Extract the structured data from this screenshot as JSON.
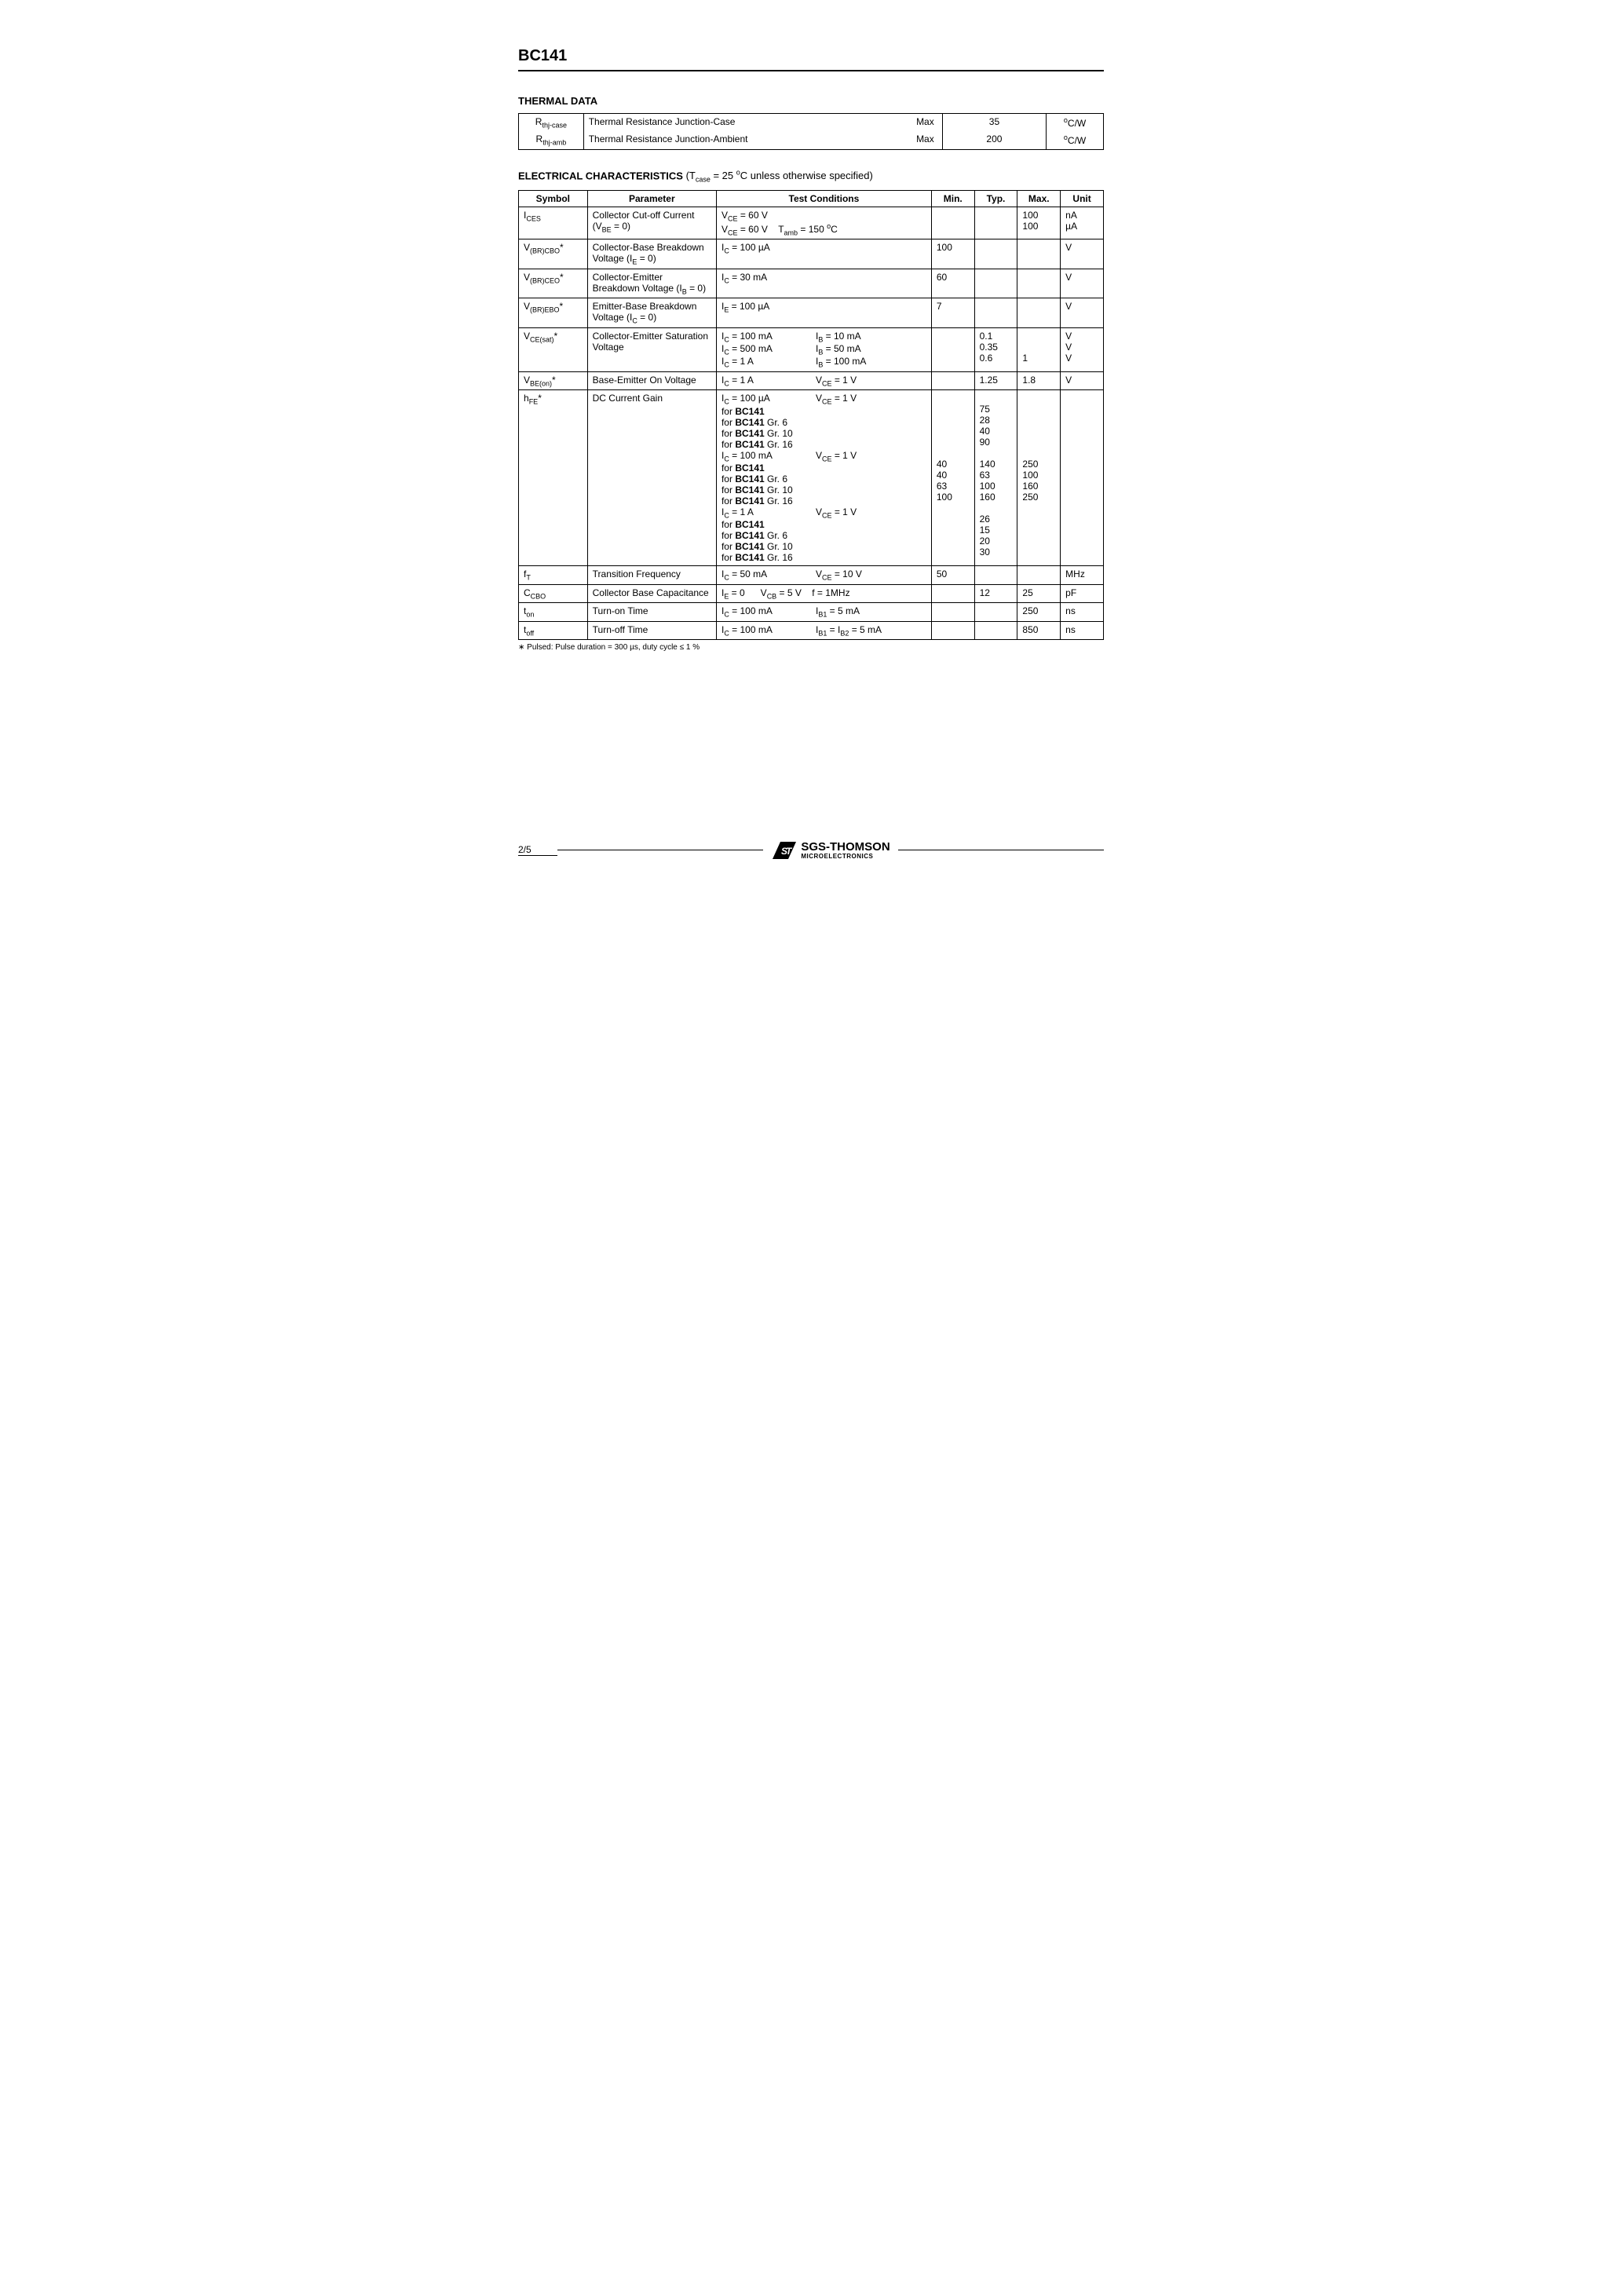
{
  "header": {
    "part_number": "BC141"
  },
  "thermal": {
    "title": "THERMAL DATA",
    "rows": [
      {
        "symbol_html": "R<span class='sub'>thj-case</span>",
        "desc": "Thermal Resistance Junction-Case",
        "maxlabel": "Max",
        "value": "35",
        "unit_html": "<span class='sup'>o</span>C/W"
      },
      {
        "symbol_html": "R<span class='sub'>thj-amb</span>",
        "desc": "Thermal Resistance Junction-Ambient",
        "maxlabel": "Max",
        "value": "200",
        "unit_html": "<span class='sup'>o</span>C/W"
      }
    ]
  },
  "electrical": {
    "title": "ELECTRICAL CHARACTERISTICS",
    "cond_note_html": "(T<span class='sub'>case</span> = 25 <span class='sup'>o</span>C unless otherwise specified)",
    "headers": {
      "symbol": "Symbol",
      "parameter": "Parameter",
      "conditions": "Test Conditions",
      "min": "Min.",
      "typ": "Typ.",
      "max": "Max.",
      "unit": "Unit"
    },
    "rows": [
      {
        "symbol_html": "I<span class='sub'>CES</span>",
        "param_html": "Collector Cut-off Current (V<span class='sub'>BE</span> = 0)",
        "cond_html": "V<span class='sub'>CE</span> = 60 V<br>V<span class='sub'>CE</span> = 60 V&nbsp;&nbsp;&nbsp;&nbsp;T<span class='sub'>amb</span> = 150 <span class='sup'>o</span>C",
        "min": "",
        "typ": "",
        "max_html": "100<br>100",
        "unit_html": "nA<br>µA"
      },
      {
        "symbol_html": "V<span class='sub'>(BR)CBO</span>*",
        "param_html": "Collector-Base Breakdown Voltage (I<span class='sub'>E</span> = 0)",
        "cond_html": "I<span class='sub'>C</span> = 100 µA",
        "min": "100",
        "typ": "",
        "max_html": "",
        "unit_html": "V"
      },
      {
        "symbol_html": "V<span class='sub'>(BR)CEO</span>*",
        "param_html": "Collector-Emitter Breakdown Voltage (I<span class='sub'>B</span> = 0)",
        "cond_html": "I<span class='sub'>C</span> = 30 mA",
        "min": "60",
        "typ": "",
        "max_html": "",
        "unit_html": "V"
      },
      {
        "symbol_html": "V<span class='sub'>(BR)EBO</span>*",
        "param_html": "Emitter-Base Breakdown Voltage (I<span class='sub'>C</span> = 0)",
        "cond_html": "I<span class='sub'>E</span> = 100 µA",
        "min": "7",
        "typ": "",
        "max_html": "",
        "unit_html": "V"
      },
      {
        "symbol_html": "V<span class='sub'>CE(sat)</span>*",
        "param_html": "Collector-Emitter Saturation Voltage",
        "cond_html": "<span class='cond-left'>I<span class='sub'>C</span> = 100 mA</span><span class='cond-right'>I<span class='sub'>B</span> = 10 mA</span><br><span class='cond-left'>I<span class='sub'>C</span> = 500 mA</span><span class='cond-right'>I<span class='sub'>B</span> = 50 mA</span><br><span class='cond-left'>I<span class='sub'>C</span> = 1 A</span><span class='cond-right'>I<span class='sub'>B</span> = 100 mA</span>",
        "min": "",
        "typ_html": "0.1<br>0.35<br>0.6",
        "max_html": "<br><br>1",
        "unit_html": "V<br>V<br>V"
      },
      {
        "symbol_html": "V<span class='sub'>BE(on)</span>*",
        "param_html": "Base-Emitter On Voltage",
        "cond_html": "<span class='cond-left'>I<span class='sub'>C</span> = 1 A</span><span class='cond-right'>V<span class='sub'>CE</span> = 1 V</span>",
        "min": "",
        "typ_html": "1.25",
        "max_html": "1.8",
        "unit_html": "V"
      },
      {
        "symbol_html": "h<span class='sub'>FE</span>*",
        "param_html": "DC Current Gain",
        "cond_html": "<span class='cond-left'>I<span class='sub'>C</span> = 100 µA</span><span class='cond-right'>V<span class='sub'>CE</span> = 1 V</span><br>for <b>BC141</b><br>for <b>BC141</b> Gr. 6<br>for <b>BC141</b> Gr. 10<br>for <b>BC141</b> Gr. 16<br><span class='cond-left'>I<span class='sub'>C</span> = 100 mA</span><span class='cond-right'>V<span class='sub'>CE</span> = 1 V</span><br>for <b>BC141</b><br>for <b>BC141</b> Gr. 6<br>for <b>BC141</b> Gr. 10<br>for <b>BC141</b> Gr. 16<br><span class='cond-left'>I<span class='sub'>C</span> = 1 A</span><span class='cond-right'>V<span class='sub'>CE</span> = 1 V</span><br>for <b>BC141</b><br>for <b>BC141</b> Gr. 6<br>for <b>BC141</b> Gr. 10<br>for <b>BC141</b> Gr. 16",
        "min_html": "<br><br><br><br><br><br>40<br>40<br>63<br>100<br><br><br><br><br>",
        "typ_html": "<br>75<br>28<br>40<br>90<br><br>140<br>63<br>100<br>160<br><br>26<br>15<br>20<br>30",
        "max_html": "<br><br><br><br><br><br>250<br>100<br>160<br>250<br><br><br><br><br>",
        "unit_html": ""
      },
      {
        "symbol_html": "f<span class='sub'>T</span>",
        "param_html": "Transition Frequency",
        "cond_html": "<span class='cond-left'>I<span class='sub'>C</span> = 50 mA</span><span class='cond-right'>V<span class='sub'>CE</span> = 10 V</span>",
        "min": "50",
        "typ_html": "",
        "max_html": "",
        "unit_html": "MHz"
      },
      {
        "symbol_html": "C<span class='sub'>CBO</span>",
        "param_html": "Collector Base Capacitance",
        "cond_html": "I<span class='sub'>E</span> = 0&nbsp;&nbsp;&nbsp;&nbsp;&nbsp;&nbsp;V<span class='sub'>CB</span> = 5 V&nbsp;&nbsp;&nbsp;&nbsp;f = 1MHz",
        "min": "",
        "typ_html": "12",
        "max_html": "25",
        "unit_html": "pF"
      },
      {
        "symbol_html": "t<span class='sub'>on</span>",
        "param_html": "Turn-on Time",
        "cond_html": "<span class='cond-left'>I<span class='sub'>C</span> = 100 mA</span><span class='cond-right'>I<span class='sub'>B1</span> = 5 mA</span>",
        "min": "",
        "typ_html": "",
        "max_html": "250",
        "unit_html": "ns"
      },
      {
        "symbol_html": "t<span class='sub'>off</span>",
        "param_html": "Turn-off Time",
        "cond_html": "<span class='cond-left'>I<span class='sub'>C</span> = 100 mA</span><span class='cond-right'>I<span class='sub'>B1</span> = I<span class='sub'>B2</span> = 5 mA</span>",
        "min": "",
        "typ_html": "",
        "max_html": "850",
        "unit_html": "ns"
      }
    ],
    "footnote": "∗ Pulsed: Pulse duration = 300 µs, duty cycle ≤ 1 %"
  },
  "footer": {
    "page": "2/5",
    "logo_main": "SGS-THOMSON",
    "logo_sub": "MICROELECTRONICS"
  }
}
